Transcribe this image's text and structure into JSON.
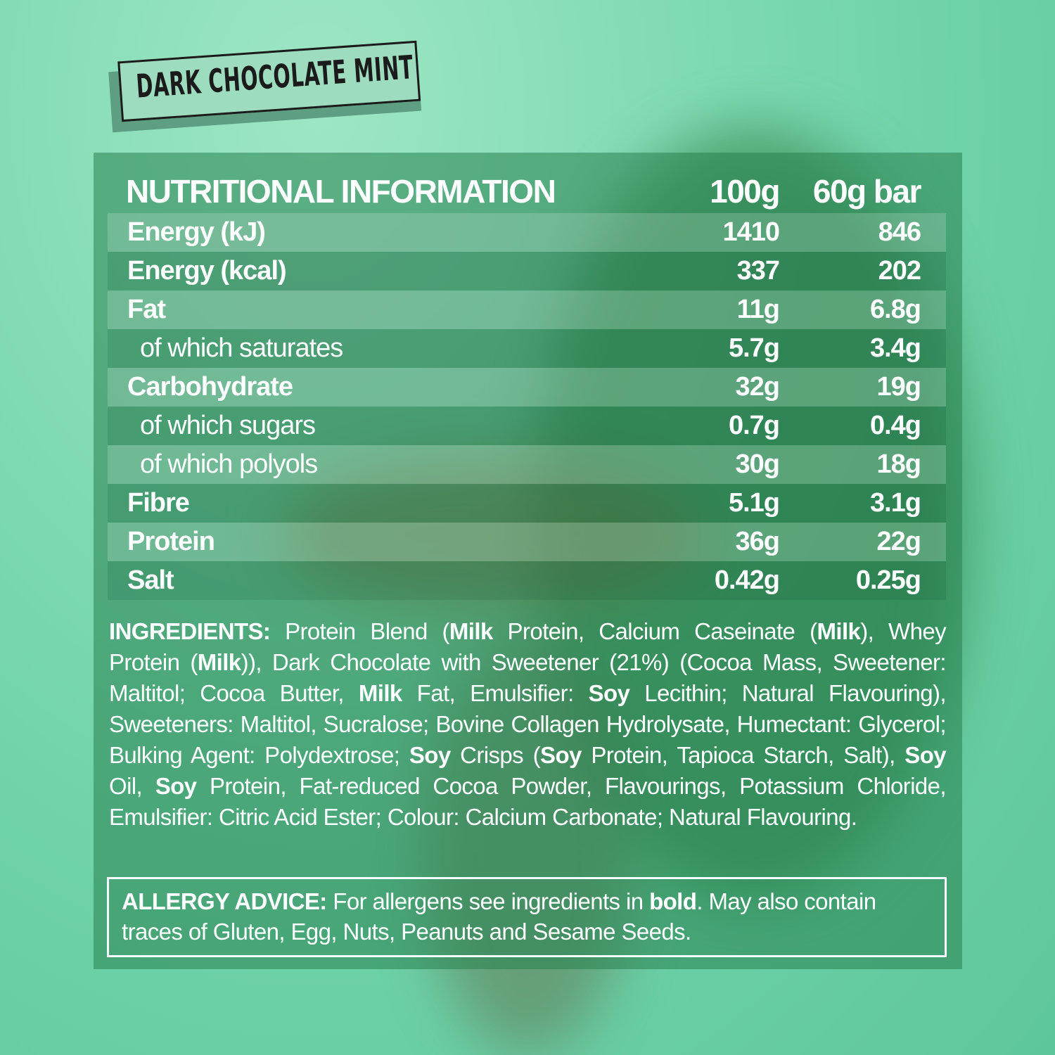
{
  "product": {
    "flavour_logo": "DARK CHOCOLATE MINT"
  },
  "nutrition": {
    "title": "NUTRITIONAL INFORMATION",
    "col1": "100g",
    "col2": "60g bar",
    "rows": [
      {
        "label": "Energy (kJ)",
        "per100g": "1410",
        "perBar": "846",
        "sub": false
      },
      {
        "label": "Energy (kcal)",
        "per100g": "337",
        "perBar": "202",
        "sub": false
      },
      {
        "label": "Fat",
        "per100g": "11g",
        "perBar": "6.8g",
        "sub": false
      },
      {
        "label": "of which saturates",
        "per100g": "5.7g",
        "perBar": "3.4g",
        "sub": true
      },
      {
        "label": "Carbohydrate",
        "per100g": "32g",
        "perBar": "19g",
        "sub": false
      },
      {
        "label": "of which sugars",
        "per100g": "0.7g",
        "perBar": "0.4g",
        "sub": true
      },
      {
        "label": "of which polyols",
        "per100g": "30g",
        "perBar": "18g",
        "sub": true
      },
      {
        "label": "Fibre",
        "per100g": "5.1g",
        "perBar": "3.1g",
        "sub": false
      },
      {
        "label": "Protein",
        "per100g": "36g",
        "perBar": "22g",
        "sub": false
      },
      {
        "label": "Salt",
        "per100g": "0.42g",
        "perBar": "0.25g",
        "sub": false
      }
    ]
  },
  "ingredients": {
    "segments": [
      {
        "text": "INGREDIENTS:",
        "bold": true
      },
      {
        "text": " Protein Blend (",
        "bold": false
      },
      {
        "text": "Milk",
        "bold": true
      },
      {
        "text": " Protein, Calcium Caseinate (",
        "bold": false
      },
      {
        "text": "Milk",
        "bold": true
      },
      {
        "text": "), Whey Protein (",
        "bold": false
      },
      {
        "text": "Milk",
        "bold": true
      },
      {
        "text": ")), Dark Chocolate with Sweetener (21%) (Cocoa Mass, Sweetener: Maltitol; Cocoa Butter, ",
        "bold": false
      },
      {
        "text": "Milk",
        "bold": true
      },
      {
        "text": " Fat, Emulsifier: ",
        "bold": false
      },
      {
        "text": "Soy",
        "bold": true
      },
      {
        "text": " Lecithin; Natural Flavouring), Sweeteners: Maltitol, Sucralose; Bovine Collagen Hydrolysate, Humectant: Glycerol; Bulking Agent: Polydextrose; ",
        "bold": false
      },
      {
        "text": "Soy",
        "bold": true
      },
      {
        "text": " Crisps (",
        "bold": false
      },
      {
        "text": "Soy",
        "bold": true
      },
      {
        "text": " Protein, Tapioca Starch, Salt), ",
        "bold": false
      },
      {
        "text": "Soy",
        "bold": true
      },
      {
        "text": " Oil, ",
        "bold": false
      },
      {
        "text": "Soy",
        "bold": true
      },
      {
        "text": " Protein, Fat-reduced Cocoa Powder, Flavourings, Potassium Chloride, Emulsifier: Citric Acid Ester; Colour: Calcium Carbonate; Natural Flavouring.",
        "bold": false
      }
    ]
  },
  "allergy": {
    "heading": "ALLERGY ADVICE:",
    "text1": " For allergens see ingredients in ",
    "bold_word": "bold",
    "text2": ". May also contain traces of Gluten, Egg, Nuts, Peanuts and Sesame Seeds."
  },
  "colors": {
    "background": "#84dcb6",
    "panel": "#3f9a68",
    "text": "#ffffff",
    "logo_plate": "#9ddcbe"
  }
}
